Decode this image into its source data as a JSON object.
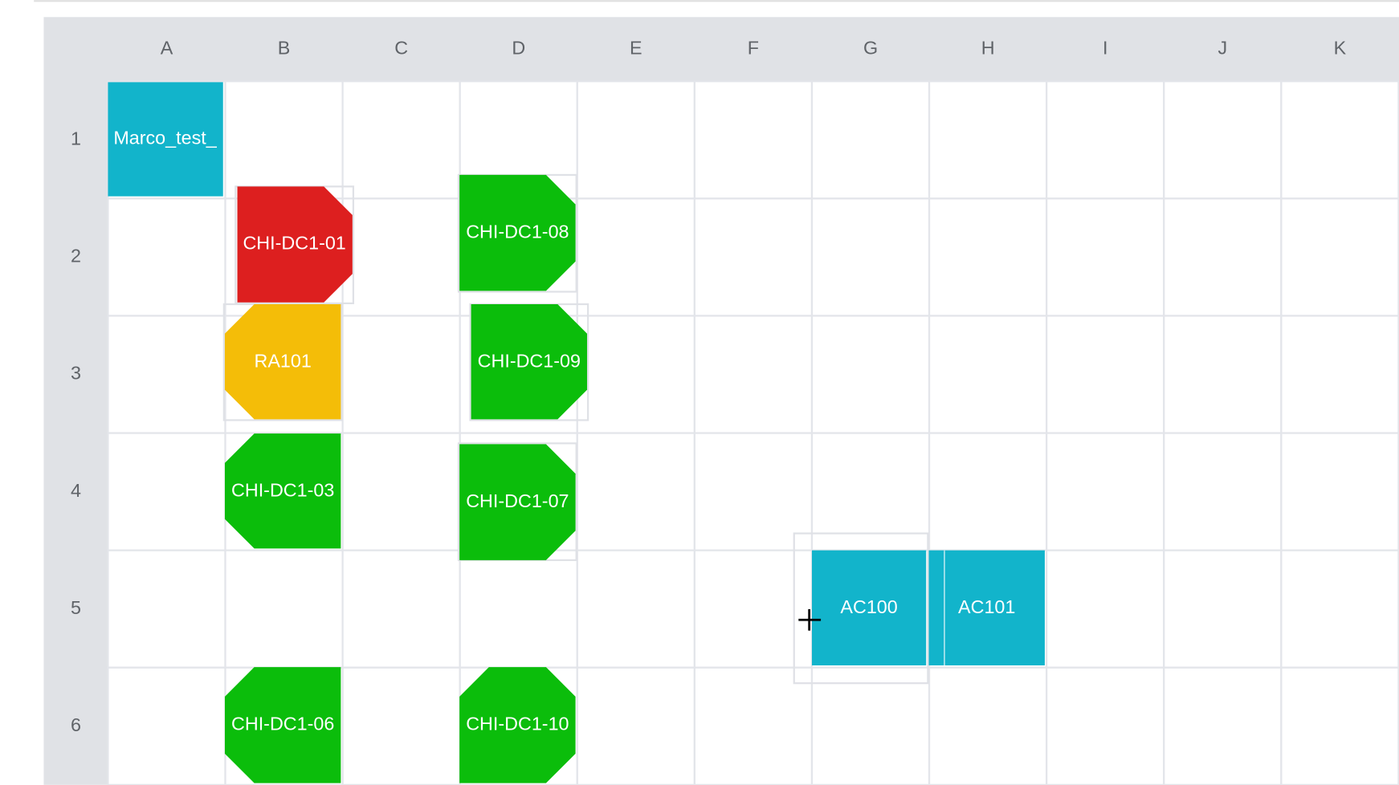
{
  "columns": [
    "A",
    "B",
    "C",
    "D",
    "E",
    "F",
    "G",
    "H",
    "I",
    "J",
    "K"
  ],
  "rows": [
    "1",
    "2",
    "3",
    "4",
    "5",
    "6"
  ],
  "nodes": [
    {
      "label": "Marco_test_"
    },
    {
      "label": "CHI-DC1-01"
    },
    {
      "label": "CHI-DC1-08"
    },
    {
      "label": "RA101"
    },
    {
      "label": "CHI-DC1-09"
    },
    {
      "label": "CHI-DC1-03"
    },
    {
      "label": "CHI-DC1-07"
    },
    {
      "label": "AC100"
    },
    {
      "label": "AC101"
    },
    {
      "label": "CHI-DC1-06"
    },
    {
      "label": "CHI-DC1-10"
    }
  ]
}
